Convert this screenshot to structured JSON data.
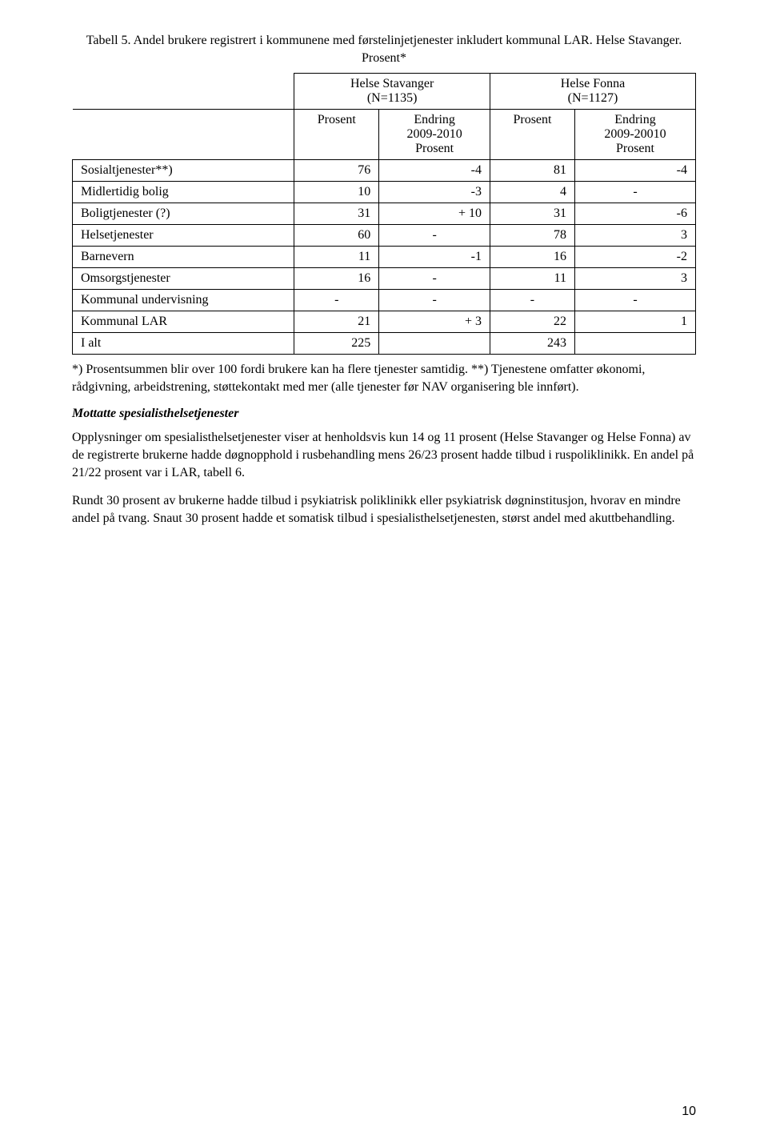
{
  "title": "Tabell 5. Andel brukere registrert i kommunene med førstelinjetjenester inkludert kommunal LAR. Helse Stavanger. Prosent*",
  "table": {
    "group1_label_line1": "Helse Stavanger",
    "group1_label_line2": "(N=1135)",
    "group2_label_line1": "Helse Fonna",
    "group2_label_line2": "(N=1127)",
    "col_prosent_1": "Prosent",
    "col_endring_1_line1": "Endring",
    "col_endring_1_line2": "2009-2010",
    "col_endring_1_line3": "Prosent",
    "col_prosent_2": "Prosent",
    "col_endring_2_line1": "Endring",
    "col_endring_2_line2": "2009-20010",
    "col_endring_2_line3": "Prosent",
    "rows": [
      {
        "label": "Sosialtjenester**)",
        "c1": "76",
        "c2": "-4",
        "c3": "81",
        "c4": "-4"
      },
      {
        "label": "Midlertidig bolig",
        "c1": "10",
        "c2": "-3",
        "c3": "4",
        "c4": "-"
      },
      {
        "label": "Boligtjenester (?)",
        "c1": "31",
        "c2": "+ 10",
        "c3": "31",
        "c4": "-6"
      },
      {
        "label": "Helsetjenester",
        "c1": "60",
        "c2": "-",
        "c3": "78",
        "c4": "3"
      },
      {
        "label": "Barnevern",
        "c1": "11",
        "c2": "-1",
        "c3": "16",
        "c4": "-2"
      },
      {
        "label": "Omsorgstjenester",
        "c1": "16",
        "c2": "-",
        "c3": "11",
        "c4": "3"
      },
      {
        "label": "Kommunal undervisning",
        "c1": "-",
        "c2": "-",
        "c3": "-",
        "c4": "-"
      },
      {
        "label": "Kommunal LAR",
        "c1": "21",
        "c2": "+ 3",
        "c3": "22",
        "c4": "1"
      },
      {
        "label": "I alt",
        "c1": "225",
        "c2": "",
        "c3": "243",
        "c4": ""
      }
    ]
  },
  "note": "*) Prosentsummen blir over 100 fordi brukere kan ha flere tjenester samtidig. **) Tjenestene omfatter økonomi, rådgivning, arbeidstrening, støttekontakt med mer (alle tjenester før NAV organisering ble innført).",
  "section_heading": "Mottatte spesialisthelsetjenester",
  "para1": "Opplysninger om spesialisthelsetjenester viser at henholdsvis kun 14 og 11 prosent (Helse Stavanger og Helse Fonna) av de registrerte brukerne hadde døgnopphold i rusbehandling mens 26/23 prosent hadde tilbud i ruspoliklinikk. En andel på 21/22 prosent var i LAR, tabell 6.",
  "para2": "Rundt 30 prosent av brukerne hadde tilbud i psykiatrisk poliklinikk eller psykiatrisk døgninstitusjon, hvorav en mindre andel på tvang. Snaut 30 prosent hadde et somatisk tilbud i spesialisthelsetjenesten, størst andel med akuttbehandling.",
  "page_number": "10"
}
